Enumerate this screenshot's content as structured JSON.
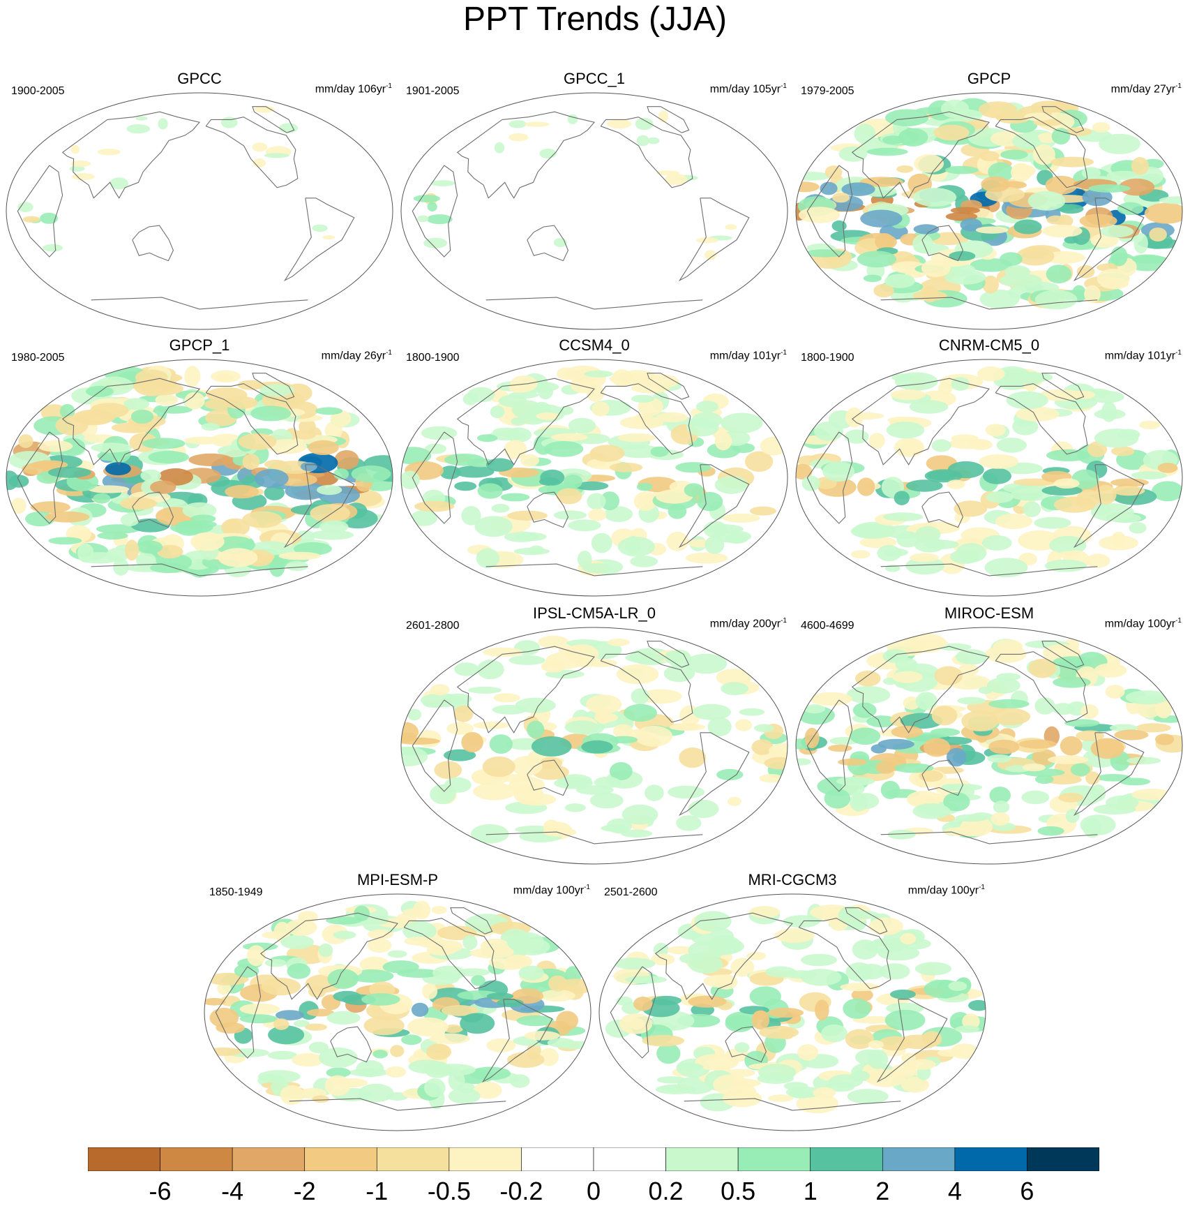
{
  "title": "PPT Trends (JJA)",
  "units_prefix": "mm/day",
  "units_suffix": "-1",
  "colors": {
    "coast": "#6e6e6e",
    "levels": [
      "#b8692c",
      "#cf8744",
      "#e0a766",
      "#f2ca82",
      "#f6e09e",
      "#fdf3c2",
      "#ffffff",
      "#ffffff",
      "#c9f8cd",
      "#98ecb5",
      "#56c2a0",
      "#6aa8c8",
      "#0069aa",
      "#00385a"
    ]
  },
  "colorbar": {
    "labels": [
      "-6",
      "-4",
      "-2",
      "-1",
      "-0.5",
      "-0.2",
      "0",
      "0.2",
      "0.5",
      "1",
      "2",
      "4",
      "6"
    ]
  },
  "panels": [
    {
      "name": "GPCC",
      "period": "1900-2005",
      "years": "106yr",
      "intensity": 0.35,
      "coverage": "land"
    },
    {
      "name": "GPCC_1",
      "period": "1901-2005",
      "years": "105yr",
      "intensity": 0.35,
      "coverage": "land"
    },
    {
      "name": "GPCP",
      "period": "1979-2005",
      "years": "27yr",
      "intensity": 1.0,
      "coverage": "global"
    },
    {
      "name": "GPCP_1",
      "period": "1980-2005",
      "years": "26yr",
      "intensity": 1.0,
      "coverage": "global"
    },
    {
      "name": "CCSM4_0",
      "period": "1800-1900",
      "years": "101yr",
      "intensity": 0.55,
      "coverage": "global"
    },
    {
      "name": "CNRM-CM5_0",
      "period": "1800-1900",
      "years": "101yr",
      "intensity": 0.55,
      "coverage": "global"
    },
    {
      "name": "IPSL-CM5A-LR_0",
      "period": "2601-2800",
      "years": "200yr",
      "intensity": 0.45,
      "coverage": "global"
    },
    {
      "name": "MIROC-ESM",
      "period": "4600-4699",
      "years": "100yr",
      "intensity": 0.65,
      "coverage": "global"
    },
    {
      "name": "MPI-ESM-P",
      "period": "1850-1949",
      "years": "100yr",
      "intensity": 0.7,
      "coverage": "global"
    },
    {
      "name": "MRI-CGCM3",
      "period": "2501-2600",
      "years": "100yr",
      "intensity": 0.6,
      "coverage": "global"
    }
  ]
}
